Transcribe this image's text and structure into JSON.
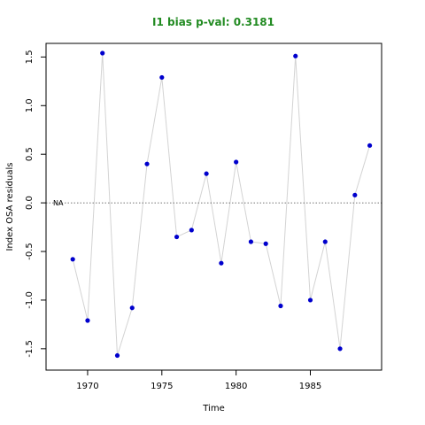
{
  "chart_data": {
    "type": "line",
    "title": "I1 bias p-val: 0.3181",
    "title_color": "#228B22",
    "xlabel": "Time",
    "ylabel": "Index OSA residuals",
    "xlim": [
      1967.2,
      1989.8
    ],
    "ylim": [
      -1.72,
      1.64
    ],
    "xticks": [
      1970,
      1975,
      1980,
      1985
    ],
    "yticks": [
      -1.5,
      -1.0,
      -0.5,
      0.0,
      0.5,
      1.0,
      1.5
    ],
    "ytick_labels": [
      "-1.5",
      "-1.0",
      "-0.5",
      "0.0",
      "0.5",
      "1.0",
      "1.5"
    ],
    "reference_line": {
      "y": 0,
      "label": "NA",
      "style": "dotted"
    },
    "point_color": "#0000CD",
    "line_color": "#d3d3d3",
    "series": [
      {
        "x": [
          1969,
          1970,
          1971,
          1972,
          1973,
          1974,
          1975,
          1976,
          1977,
          1978,
          1979,
          1980,
          1981,
          1982,
          1983,
          1984,
          1985,
          1986,
          1987,
          1988,
          1989
        ],
        "values": [
          -0.58,
          -1.21,
          1.54,
          -1.57,
          -1.08,
          0.4,
          1.29,
          -0.35,
          -0.28,
          0.3,
          -0.62,
          0.42,
          -0.4,
          -0.42,
          -1.06,
          1.51,
          -1.0,
          -0.4,
          -1.5,
          0.08,
          0.59
        ]
      }
    ]
  }
}
